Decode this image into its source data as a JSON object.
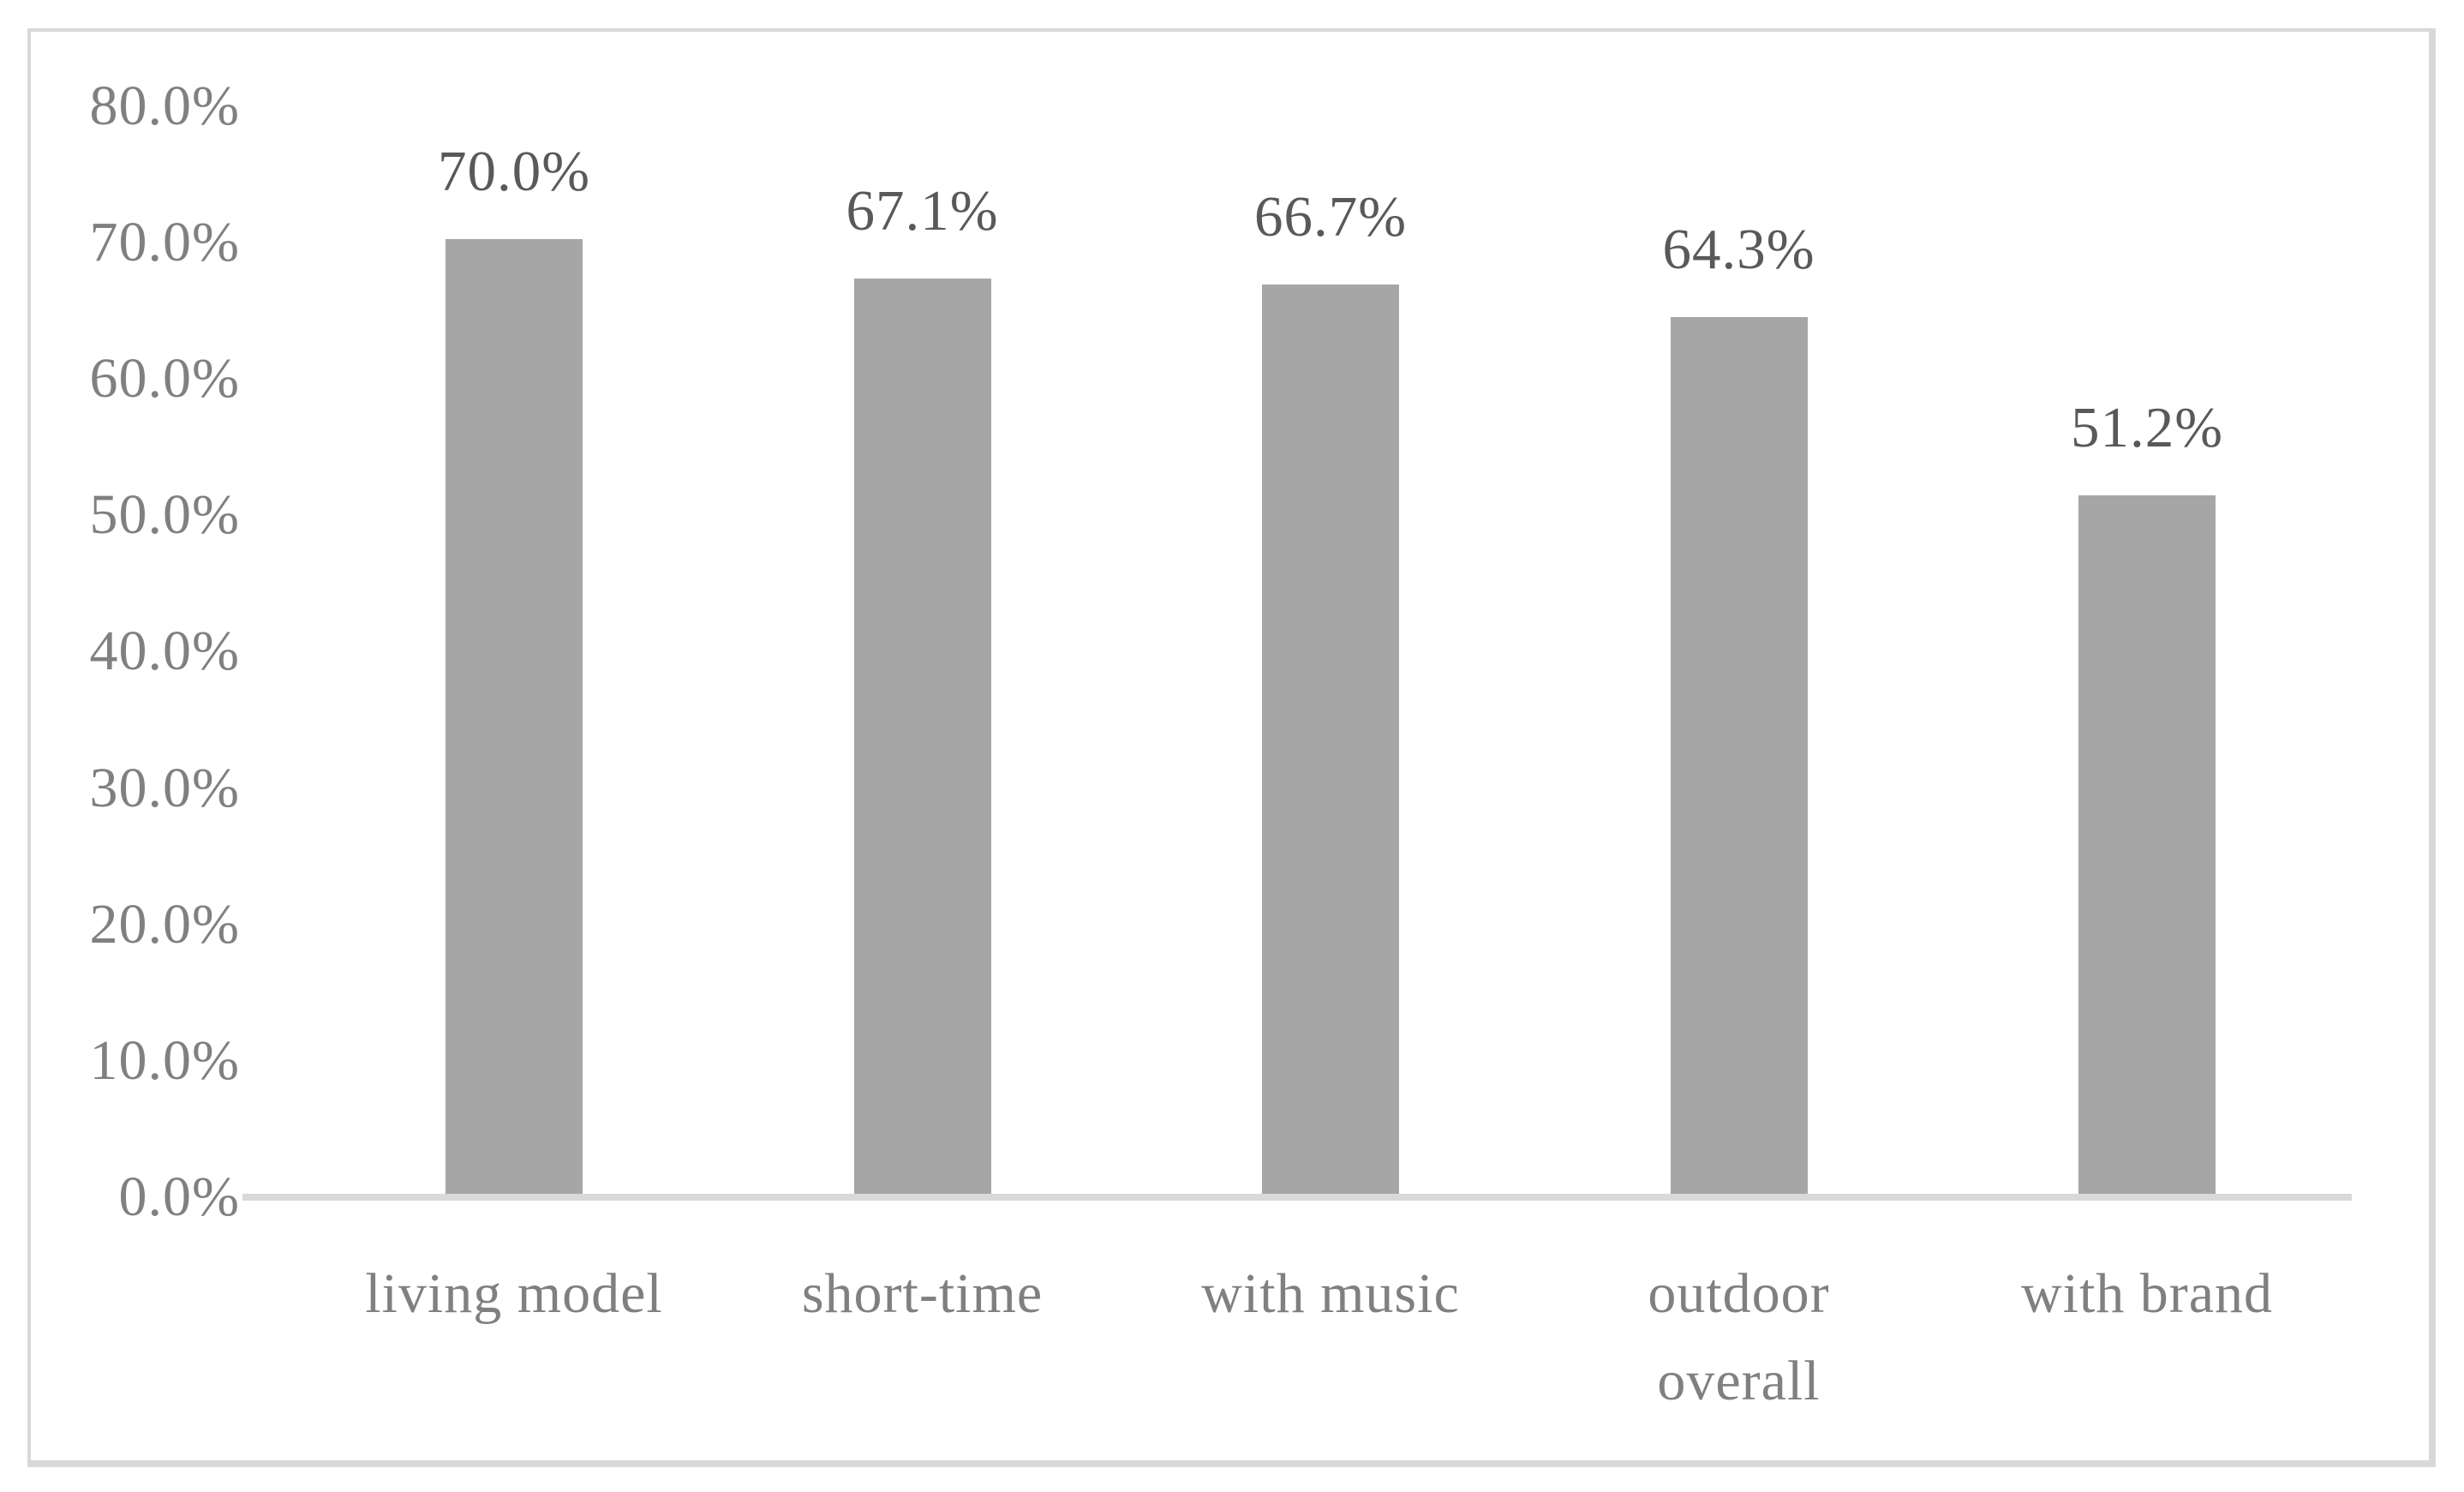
{
  "chart_data": {
    "type": "bar",
    "title": "",
    "xlabel": "",
    "ylabel": "",
    "categories": [
      "living model",
      "short-time",
      "with music",
      "outdoor overall",
      "with brand"
    ],
    "category_lines": [
      [
        "living model"
      ],
      [
        "short-time"
      ],
      [
        "with music"
      ],
      [
        "outdoor",
        "overall"
      ],
      [
        "with brand"
      ]
    ],
    "values": [
      70.0,
      67.1,
      66.7,
      64.3,
      51.2
    ],
    "data_labels": [
      "70.0%",
      "67.1%",
      "66.7%",
      "64.3%",
      "51.2%"
    ],
    "ytick_values": [
      0,
      10,
      20,
      30,
      40,
      50,
      60,
      70,
      80
    ],
    "ytick_labels": [
      "0.0%",
      "10.0%",
      "20.0%",
      "30.0%",
      "40.0%",
      "50.0%",
      "60.0%",
      "70.0%",
      "80.0%"
    ],
    "ylim": [
      0,
      80
    ],
    "grid": false,
    "legend": null,
    "colors": {
      "bar_fill": "#a6a6a6",
      "axis_line": "#d9d9d9",
      "frame_border": "#d8d8d8",
      "tick_label": "#808080",
      "category_label": "#808080",
      "data_label": "#595959",
      "background": "#ffffff"
    }
  }
}
